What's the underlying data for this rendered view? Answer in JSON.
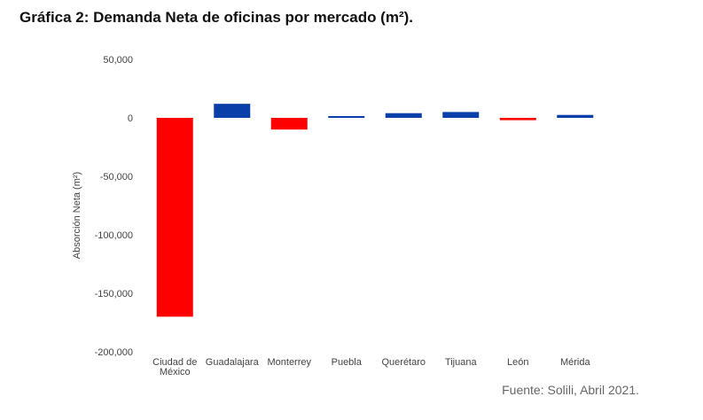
{
  "title": "Gráfica 2: Demanda Neta de oficinas por mercado (m²).",
  "source": "Fuente: Solili, Abril 2021.",
  "chart_data": {
    "type": "bar",
    "title": "",
    "xlabel": "",
    "ylabel": "Absorción Neta (m²)",
    "ylim": [
      -200000,
      50000
    ],
    "yticks": [
      50000,
      0,
      -50000,
      -100000,
      -150000,
      -200000
    ],
    "ytick_labels": [
      "50,000",
      "0",
      "-50,000",
      "-100,000",
      "-150,000",
      "-200,000"
    ],
    "categories": [
      "Ciudad de México",
      "Guadalajara",
      "Monterrey",
      "Puebla",
      "Querétaro",
      "Tijuana",
      "León",
      "Mérida"
    ],
    "category_lines": [
      [
        "Ciudad de",
        "México"
      ],
      [
        "Guadalajara"
      ],
      [
        "Monterrey"
      ],
      [
        "Puebla"
      ],
      [
        "Querétaro"
      ],
      [
        "Tijuana"
      ],
      [
        "León"
      ],
      [
        "Mérida"
      ]
    ],
    "values": [
      -170000,
      12000,
      -10000,
      1000,
      4000,
      5000,
      -2000,
      2500
    ],
    "grid": false,
    "colors": {
      "positive": "#0a3ea8",
      "negative": "#ff0000"
    }
  }
}
